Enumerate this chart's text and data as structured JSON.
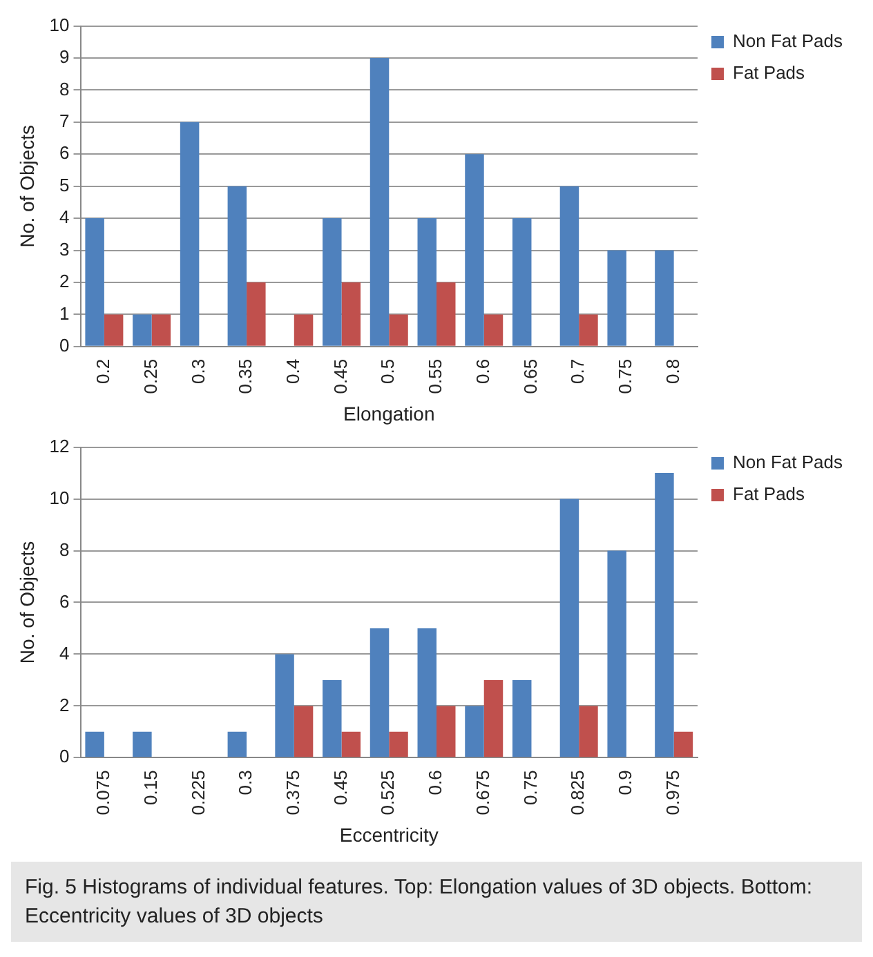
{
  "chart_data": [
    {
      "type": "bar",
      "xlabel": "Elongation",
      "ylabel": "No. of Objects",
      "categories": [
        "0.2",
        "0.25",
        "0.3",
        "0.35",
        "0.4",
        "0.45",
        "0.5",
        "0.55",
        "0.6",
        "0.65",
        "0.7",
        "0.75",
        "0.8"
      ],
      "series": [
        {
          "name": "Non Fat Pads",
          "color": "#4f81bd",
          "values": [
            4,
            1,
            7,
            5,
            0,
            4,
            9,
            4,
            6,
            4,
            5,
            3,
            3
          ]
        },
        {
          "name": "Fat Pads",
          "color": "#c0504d",
          "values": [
            1,
            1,
            0,
            2,
            1,
            2,
            1,
            2,
            1,
            0,
            1,
            0,
            0
          ]
        }
      ],
      "ylim": [
        0,
        10
      ],
      "yticks": [
        0,
        1,
        2,
        3,
        4,
        5,
        6,
        7,
        8,
        9,
        10
      ],
      "grid": "y",
      "legend": "top right"
    },
    {
      "type": "bar",
      "xlabel": "Eccentricity",
      "ylabel": "No. of Objects",
      "categories": [
        "0.075",
        "0.15",
        "0.225",
        "0.3",
        "0.375",
        "0.45",
        "0.525",
        "0.6",
        "0.675",
        "0.75",
        "0.825",
        "0.9",
        "0.975"
      ],
      "series": [
        {
          "name": "Non Fat Pads",
          "color": "#4f81bd",
          "values": [
            1,
            1,
            0,
            1,
            4,
            3,
            5,
            5,
            2,
            3,
            10,
            8,
            11
          ]
        },
        {
          "name": "Fat Pads",
          "color": "#c0504d",
          "values": [
            0,
            0,
            0,
            0,
            2,
            1,
            1,
            2,
            3,
            0,
            2,
            0,
            1
          ]
        }
      ],
      "ylim": [
        0,
        12
      ],
      "yticks": [
        0,
        2,
        4,
        6,
        8,
        10,
        12
      ],
      "grid": "y",
      "legend": "top right",
      "annotations": [
        "Fig. 5 Histograms of individual features. Top: Elongation values of 3D objects. Bottom: Eccentricity values of 3D objects"
      ]
    }
  ]
}
